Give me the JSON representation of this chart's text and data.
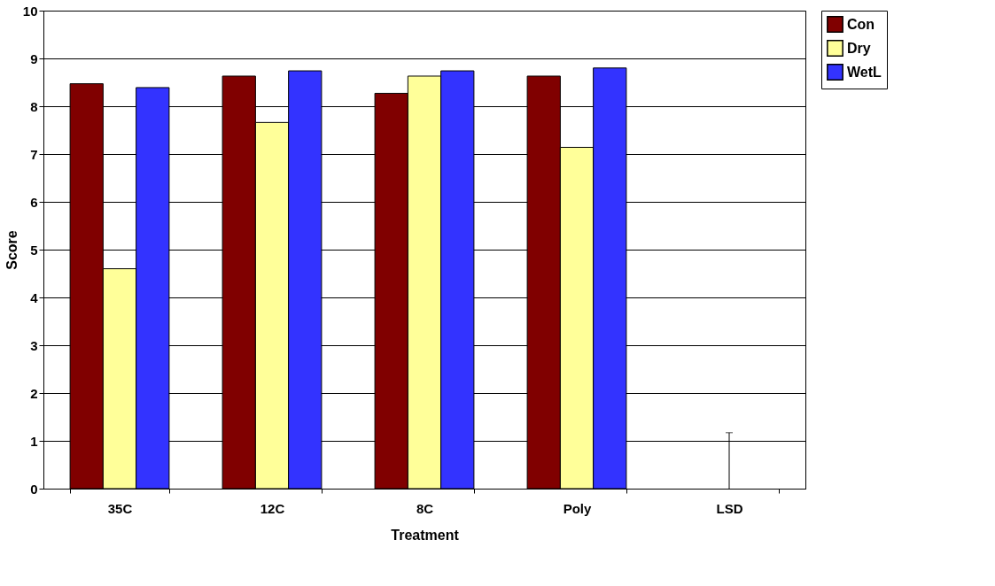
{
  "chart_data": {
    "type": "bar",
    "xlabel": "Treatment",
    "ylabel": "Score",
    "categories": [
      "35C",
      "12C",
      "8C",
      "Poly",
      "LSD"
    ],
    "series": [
      {
        "name": "Con",
        "color": "#800000",
        "values": [
          8.47,
          8.63,
          8.27,
          8.63,
          null
        ]
      },
      {
        "name": "Dry",
        "color": "#ffff99",
        "values": [
          4.6,
          7.66,
          8.63,
          7.14,
          0
        ],
        "errors": [
          null,
          null,
          null,
          null,
          [
            0,
            1.17
          ]
        ]
      },
      {
        "name": "WetL",
        "color": "#3333ff",
        "values": [
          8.39,
          8.74,
          8.74,
          8.8,
          null
        ]
      }
    ],
    "ylim": [
      0,
      10
    ],
    "yticks": [
      0,
      1,
      2,
      3,
      4,
      5,
      6,
      7,
      8,
      9,
      10
    ],
    "grid": "y",
    "legend": "right"
  }
}
